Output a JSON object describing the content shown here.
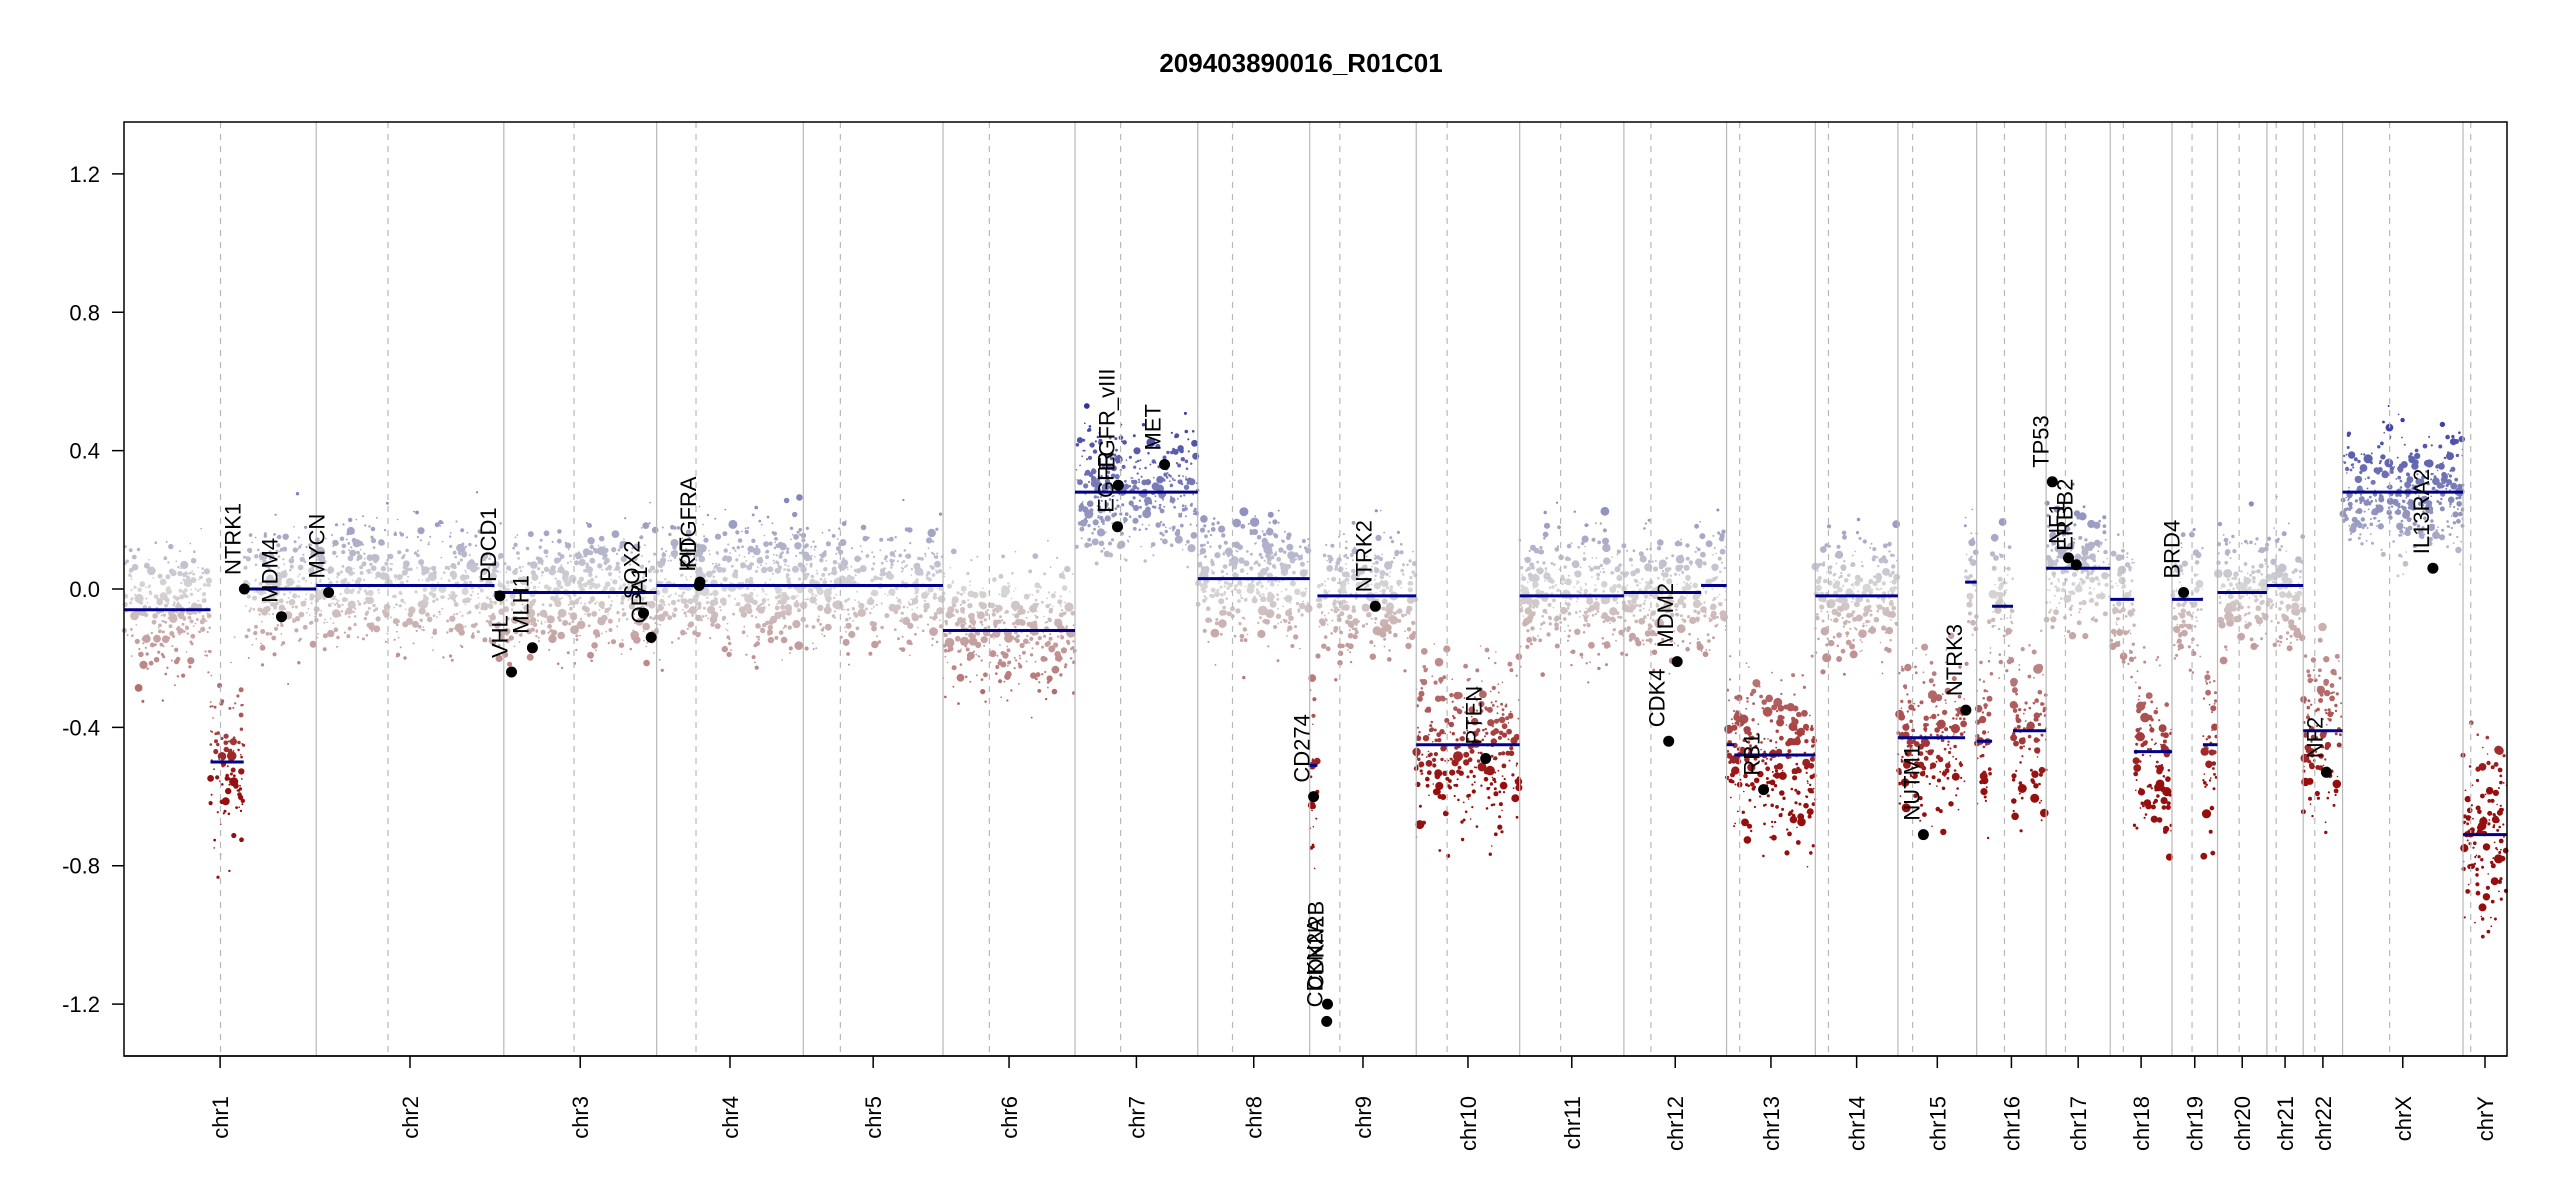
{
  "chart_data": {
    "type": "scatter",
    "title": "209403890016_R01C01",
    "xlabel": "",
    "ylabel": "",
    "ylim": [
      -1.35,
      1.35
    ],
    "yticks": [
      -1.2,
      -0.8,
      -0.4,
      0.0,
      0.4,
      0.8,
      1.2
    ],
    "grid": false,
    "chromosomes": [
      {
        "name": "chr1",
        "start": 0,
        "end": 249,
        "centromere": 125
      },
      {
        "name": "chr2",
        "start": 249,
        "end": 492,
        "centromere": 342
      },
      {
        "name": "chr3",
        "start": 492,
        "end": 690,
        "centromere": 583
      },
      {
        "name": "chr4",
        "start": 690,
        "end": 880,
        "centromere": 741
      },
      {
        "name": "chr5",
        "start": 880,
        "end": 1061,
        "centromere": 928
      },
      {
        "name": "chr6",
        "start": 1061,
        "end": 1232,
        "centromere": 1121
      },
      {
        "name": "chr7",
        "start": 1232,
        "end": 1391,
        "centromere": 1291
      },
      {
        "name": "chr8",
        "start": 1391,
        "end": 1536,
        "centromere": 1436
      },
      {
        "name": "chr9",
        "start": 1536,
        "end": 1674,
        "centromere": 1575
      },
      {
        "name": "chr10",
        "start": 1674,
        "end": 1808,
        "centromere": 1714
      },
      {
        "name": "chr11",
        "start": 1808,
        "end": 1943,
        "centromere": 1861
      },
      {
        "name": "chr12",
        "start": 1943,
        "end": 2076,
        "centromere": 1978
      },
      {
        "name": "chr13",
        "start": 2076,
        "end": 2191,
        "centromere": 2093
      },
      {
        "name": "chr14",
        "start": 2191,
        "end": 2298,
        "centromere": 2208
      },
      {
        "name": "chr15",
        "start": 2298,
        "end": 2400,
        "centromere": 2317
      },
      {
        "name": "chr16",
        "start": 2400,
        "end": 2490,
        "centromere": 2436
      },
      {
        "name": "chr17",
        "start": 2490,
        "end": 2573,
        "centromere": 2515
      },
      {
        "name": "chr18",
        "start": 2573,
        "end": 2653,
        "centromere": 2590
      },
      {
        "name": "chr19",
        "start": 2653,
        "end": 2712,
        "centromere": 2679
      },
      {
        "name": "chr20",
        "start": 2712,
        "end": 2776,
        "centromere": 2740
      },
      {
        "name": "chr21",
        "start": 2776,
        "end": 2823,
        "centromere": 2788
      },
      {
        "name": "chr22",
        "start": 2823,
        "end": 2874,
        "centromere": 2838
      },
      {
        "name": "chrX",
        "start": 2874,
        "end": 3030,
        "centromere": 2935
      },
      {
        "name": "chrY",
        "start": 3030,
        "end": 3087,
        "centromere": 3040
      }
    ],
    "segments": [
      {
        "start": 0,
        "end": 80,
        "value": -0.06
      },
      {
        "start": 80,
        "end": 112,
        "value": -0.06
      },
      {
        "start": 112,
        "end": 155,
        "value": -0.5
      },
      {
        "start": 155,
        "end": 249,
        "value": 0.0
      },
      {
        "start": 249,
        "end": 480,
        "value": 0.01
      },
      {
        "start": 480,
        "end": 690,
        "value": -0.01
      },
      {
        "start": 690,
        "end": 1061,
        "value": 0.01
      },
      {
        "start": 1061,
        "end": 1232,
        "value": -0.12
      },
      {
        "start": 1232,
        "end": 1391,
        "value": 0.28
      },
      {
        "start": 1391,
        "end": 1536,
        "value": 0.03
      },
      {
        "start": 1536,
        "end": 1546,
        "value": -0.51
      },
      {
        "start": 1546,
        "end": 1674,
        "value": -0.02
      },
      {
        "start": 1674,
        "end": 1808,
        "value": -0.45
      },
      {
        "start": 1808,
        "end": 1943,
        "value": -0.02
      },
      {
        "start": 1943,
        "end": 2043,
        "value": -0.01
      },
      {
        "start": 2043,
        "end": 2076,
        "value": 0.01
      },
      {
        "start": 2076,
        "end": 2086,
        "value": -0.45
      },
      {
        "start": 2086,
        "end": 2191,
        "value": -0.48
      },
      {
        "start": 2191,
        "end": 2298,
        "value": -0.02
      },
      {
        "start": 2298,
        "end": 2385,
        "value": -0.43
      },
      {
        "start": 2385,
        "end": 2400,
        "value": 0.02
      },
      {
        "start": 2400,
        "end": 2420,
        "value": -0.44
      },
      {
        "start": 2420,
        "end": 2447,
        "value": -0.05
      },
      {
        "start": 2447,
        "end": 2490,
        "value": -0.41
      },
      {
        "start": 2490,
        "end": 2573,
        "value": 0.06
      },
      {
        "start": 2573,
        "end": 2604,
        "value": -0.03
      },
      {
        "start": 2604,
        "end": 2653,
        "value": -0.47
      },
      {
        "start": 2653,
        "end": 2693,
        "value": -0.03
      },
      {
        "start": 2693,
        "end": 2712,
        "value": -0.45
      },
      {
        "start": 2712,
        "end": 2776,
        "value": -0.01
      },
      {
        "start": 2776,
        "end": 2823,
        "value": 0.01
      },
      {
        "start": 2823,
        "end": 2874,
        "value": -0.41
      },
      {
        "start": 2874,
        "end": 3030,
        "value": 0.28
      },
      {
        "start": 3030,
        "end": 3087,
        "value": -0.71
      }
    ],
    "genes": [
      {
        "name": "NTRK1",
        "pos": 156,
        "value": 0.0
      },
      {
        "name": "MDM4",
        "pos": 204,
        "value": -0.08
      },
      {
        "name": "MYCN",
        "pos": 265,
        "value": -0.01
      },
      {
        "name": "PDCD1",
        "pos": 487,
        "value": -0.02
      },
      {
        "name": "VHL",
        "pos": 502,
        "value": -0.24
      },
      {
        "name": "MLH1",
        "pos": 529,
        "value": -0.17
      },
      {
        "name": "SOX2",
        "pos": 673,
        "value": -0.07
      },
      {
        "name": "OPA1",
        "pos": 683,
        "value": -0.14
      },
      {
        "name": "KIT",
        "pos": 745,
        "value": 0.01
      },
      {
        "name": "PDGFRA",
        "pos": 746,
        "value": 0.02
      },
      {
        "name": "EGFR",
        "pos": 1287,
        "value": 0.18
      },
      {
        "name": "EGFR_vIII",
        "pos": 1288,
        "value": 0.3
      },
      {
        "name": "MET",
        "pos": 1348,
        "value": 0.36
      },
      {
        "name": "CD274",
        "pos": 1541,
        "value": -0.6
      },
      {
        "name": "CDKN2A",
        "pos": 1558,
        "value": -1.25
      },
      {
        "name": "CDKN2B",
        "pos": 1559,
        "value": -1.2
      },
      {
        "name": "NTRK2",
        "pos": 1621,
        "value": -0.05
      },
      {
        "name": "PTEN",
        "pos": 1764,
        "value": -0.49
      },
      {
        "name": "CDK4",
        "pos": 2001,
        "value": -0.44
      },
      {
        "name": "MDM2",
        "pos": 2012,
        "value": -0.21
      },
      {
        "name": "RB1",
        "pos": 2124,
        "value": -0.58
      },
      {
        "name": "NUTM1",
        "pos": 2331,
        "value": -0.71
      },
      {
        "name": "NTRK3",
        "pos": 2386,
        "value": -0.35
      },
      {
        "name": "TP53",
        "pos": 2498,
        "value": 0.31
      },
      {
        "name": "NF1",
        "pos": 2519,
        "value": 0.09
      },
      {
        "name": "ERBB2",
        "pos": 2529,
        "value": 0.07
      },
      {
        "name": "BRD4",
        "pos": 2668,
        "value": -0.01
      },
      {
        "name": "NF2",
        "pos": 2853,
        "value": -0.53
      },
      {
        "name": "IL13RA2",
        "pos": 2991,
        "value": 0.06
      }
    ],
    "colors": {
      "gain": "#3b40a0",
      "loss": "#a01818",
      "neutral": "#cfcfcf",
      "segment": "#00008b",
      "gene_point": "#000000"
    }
  }
}
